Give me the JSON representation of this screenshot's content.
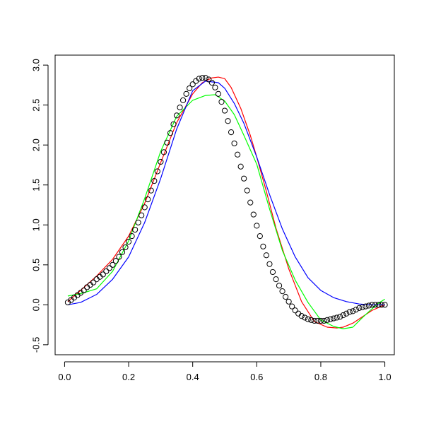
{
  "chart_data": {
    "type": "scatter",
    "title": "",
    "xlabel": "",
    "ylabel": "",
    "xlim": [
      -0.0296,
      1.0296
    ],
    "ylim": [
      -0.625,
      3.125
    ],
    "x_ticks": [
      0.0,
      0.2,
      0.4,
      0.6,
      0.8,
      1.0
    ],
    "x_tick_labels": [
      "0.0",
      "0.2",
      "0.4",
      "0.6",
      "0.8",
      "1.0"
    ],
    "y_ticks": [
      -0.5,
      0.0,
      0.5,
      1.0,
      1.5,
      2.0,
      2.5,
      3.0
    ],
    "y_tick_labels": [
      "-0.5",
      "0.0",
      "0.5",
      "1.0",
      "1.5",
      "2.0",
      "2.5",
      "3.0"
    ],
    "grid": false,
    "legend": "none",
    "points": {
      "marker": "open-circle",
      "color": "#000000",
      "x": [
        0.01,
        0.02,
        0.03,
        0.04,
        0.05,
        0.06,
        0.07,
        0.08,
        0.09,
        0.1,
        0.11,
        0.12,
        0.13,
        0.14,
        0.15,
        0.16,
        0.17,
        0.18,
        0.19,
        0.2,
        0.21,
        0.22,
        0.23,
        0.24,
        0.25,
        0.26,
        0.27,
        0.28,
        0.29,
        0.3,
        0.31,
        0.32,
        0.33,
        0.34,
        0.35,
        0.36,
        0.37,
        0.38,
        0.39,
        0.4,
        0.41,
        0.42,
        0.43,
        0.44,
        0.45,
        0.46,
        0.47,
        0.48,
        0.49,
        0.5,
        0.51,
        0.52,
        0.53,
        0.54,
        0.55,
        0.56,
        0.57,
        0.58,
        0.59,
        0.6,
        0.61,
        0.62,
        0.63,
        0.64,
        0.65,
        0.66,
        0.67,
        0.68,
        0.69,
        0.7,
        0.71,
        0.72,
        0.73,
        0.74,
        0.75,
        0.76,
        0.77,
        0.78,
        0.79,
        0.8,
        0.81,
        0.82,
        0.83,
        0.84,
        0.85,
        0.86,
        0.87,
        0.88,
        0.89,
        0.9,
        0.91,
        0.92,
        0.93,
        0.94,
        0.95,
        0.96,
        0.97,
        0.98,
        0.99,
        1.0
      ],
      "y": [
        0.03,
        0.06,
        0.09,
        0.12,
        0.15,
        0.18,
        0.22,
        0.25,
        0.28,
        0.32,
        0.35,
        0.38,
        0.42,
        0.46,
        0.5,
        0.55,
        0.6,
        0.66,
        0.72,
        0.79,
        0.86,
        0.94,
        1.03,
        1.12,
        1.22,
        1.32,
        1.43,
        1.55,
        1.67,
        1.79,
        1.91,
        2.03,
        2.15,
        2.26,
        2.37,
        2.47,
        2.56,
        2.64,
        2.71,
        2.76,
        2.8,
        2.83,
        2.84,
        2.84,
        2.82,
        2.78,
        2.72,
        2.64,
        2.54,
        2.43,
        2.3,
        2.16,
        2.02,
        1.88,
        1.73,
        1.58,
        1.43,
        1.28,
        1.13,
        0.99,
        0.86,
        0.73,
        0.62,
        0.51,
        0.41,
        0.32,
        0.24,
        0.17,
        0.1,
        0.04,
        -0.02,
        -0.07,
        -0.11,
        -0.14,
        -0.16,
        -0.18,
        -0.19,
        -0.2,
        -0.2,
        -0.2,
        -0.2,
        -0.19,
        -0.18,
        -0.17,
        -0.16,
        -0.15,
        -0.13,
        -0.11,
        -0.09,
        -0.08,
        -0.06,
        -0.04,
        -0.03,
        -0.02,
        -0.01,
        0.0,
        0.0,
        0.0,
        0.0,
        0.0
      ]
    },
    "series": [
      {
        "color": "#ff0000",
        "x": [
          0.01,
          0.05,
          0.1,
          0.15,
          0.2,
          0.25,
          0.3,
          0.35,
          0.4,
          0.43,
          0.46,
          0.48,
          0.5,
          0.52,
          0.55,
          0.58,
          0.6,
          0.63,
          0.66,
          0.7,
          0.74,
          0.78,
          0.82,
          0.85,
          0.87,
          0.9,
          0.93,
          0.96,
          1.0
        ],
        "y": [
          0.04,
          0.18,
          0.36,
          0.57,
          0.86,
          1.27,
          1.78,
          2.28,
          2.64,
          2.78,
          2.84,
          2.85,
          2.83,
          2.72,
          2.46,
          2.12,
          1.85,
          1.42,
          0.96,
          0.45,
          0.04,
          -0.21,
          -0.28,
          -0.29,
          -0.28,
          -0.23,
          -0.15,
          -0.07,
          0.0
        ]
      },
      {
        "color": "#00ff00",
        "x": [
          0.01,
          0.05,
          0.1,
          0.15,
          0.2,
          0.25,
          0.3,
          0.35,
          0.4,
          0.44,
          0.47,
          0.5,
          0.53,
          0.56,
          0.6,
          0.64,
          0.68,
          0.72,
          0.76,
          0.8,
          0.84,
          0.87,
          0.9,
          0.93,
          0.96,
          0.98,
          1.0
        ],
        "y": [
          0.11,
          0.14,
          0.2,
          0.42,
          0.8,
          1.33,
          1.92,
          2.36,
          2.56,
          2.62,
          2.63,
          2.55,
          2.38,
          2.12,
          1.76,
          1.2,
          0.68,
          0.31,
          0.03,
          -0.19,
          -0.27,
          -0.3,
          -0.28,
          -0.16,
          -0.05,
          0.02,
          0.07
        ]
      },
      {
        "color": "#0000ff",
        "x": [
          0.01,
          0.05,
          0.1,
          0.15,
          0.2,
          0.25,
          0.3,
          0.35,
          0.4,
          0.44,
          0.48,
          0.5,
          0.53,
          0.56,
          0.6,
          0.64,
          0.68,
          0.72,
          0.76,
          0.8,
          0.84,
          0.88,
          0.92,
          0.96,
          1.0
        ],
        "y": [
          0.0,
          0.03,
          0.13,
          0.32,
          0.6,
          1.03,
          1.58,
          2.2,
          2.68,
          2.8,
          2.78,
          2.71,
          2.52,
          2.27,
          1.85,
          1.38,
          0.95,
          0.6,
          0.34,
          0.18,
          0.09,
          0.04,
          0.01,
          0.0,
          0.0
        ]
      }
    ]
  }
}
